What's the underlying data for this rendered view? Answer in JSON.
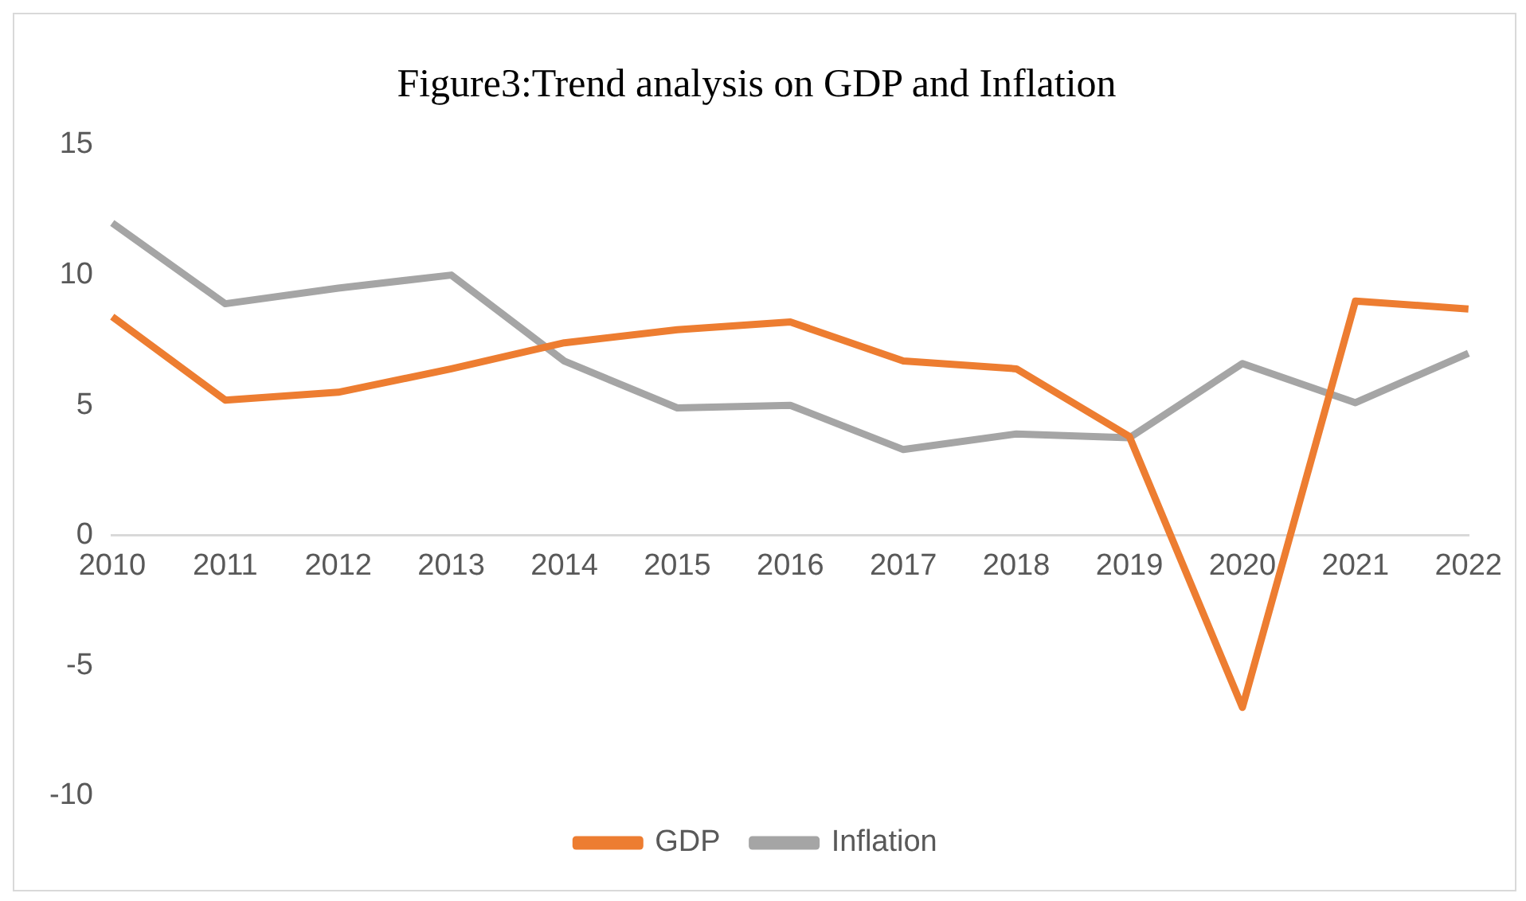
{
  "chart_data": {
    "type": "line",
    "title": "Figure3:Trend analysis on GDP and Inflation",
    "categories": [
      "2010",
      "2011",
      "2012",
      "2013",
      "2014",
      "2015",
      "2016",
      "2017",
      "2018",
      "2019",
      "2020",
      "2021",
      "2022"
    ],
    "series": [
      {
        "name": "GDP",
        "color": "#ed7d31",
        "values": [
          8.4,
          5.2,
          5.5,
          6.4,
          7.4,
          7.9,
          8.2,
          6.7,
          6.4,
          3.8,
          -6.6,
          9.0,
          8.7
        ]
      },
      {
        "name": "Inflation",
        "color": "#a5a5a5",
        "values": [
          12.0,
          8.9,
          9.5,
          10.0,
          6.7,
          4.9,
          5.0,
          3.3,
          3.9,
          3.75,
          6.6,
          5.1,
          7.0
        ]
      }
    ],
    "ylim": [
      -10,
      15
    ],
    "yticks": [
      -10,
      -5,
      0,
      5,
      10,
      15
    ],
    "grid": false,
    "legend": "bottom",
    "marker": "none",
    "line_style": "solid"
  }
}
